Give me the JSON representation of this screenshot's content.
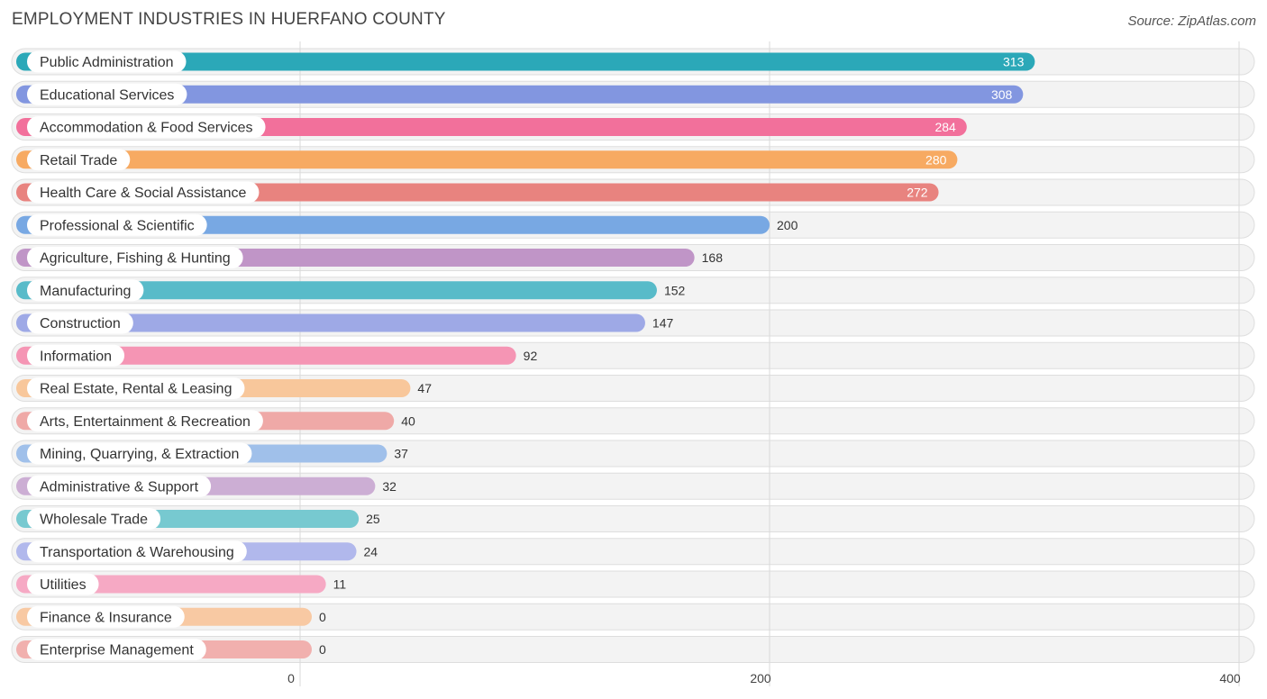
{
  "header": {
    "title": "EMPLOYMENT INDUSTRIES IN HUERFANO COUNTY",
    "source": "Source: ZipAtlas.com"
  },
  "chart_data": {
    "type": "bar",
    "orientation": "horizontal",
    "title": "EMPLOYMENT INDUSTRIES IN HUERFANO COUNTY",
    "xlabel": "",
    "ylabel": "",
    "xlim": [
      0,
      400
    ],
    "ticks": [
      0,
      200,
      400
    ],
    "categories": [
      "Public Administration",
      "Educational Services",
      "Accommodation & Food Services",
      "Retail Trade",
      "Health Care & Social Assistance",
      "Professional & Scientific",
      "Agriculture, Fishing & Hunting",
      "Manufacturing",
      "Construction",
      "Information",
      "Real Estate, Rental & Leasing",
      "Arts, Entertainment & Recreation",
      "Mining, Quarrying, & Extraction",
      "Administrative & Support",
      "Wholesale Trade",
      "Transportation & Warehousing",
      "Utilities",
      "Finance & Insurance",
      "Enterprise Management"
    ],
    "values": [
      313,
      308,
      284,
      280,
      272,
      200,
      168,
      152,
      147,
      92,
      47,
      40,
      37,
      32,
      25,
      24,
      11,
      0,
      0
    ],
    "colors": [
      "#2ba8b8",
      "#8296e0",
      "#f2709b",
      "#f7aa62",
      "#e8837f",
      "#78a8e3",
      "#c095c7",
      "#58bbc9",
      "#9ea9e6",
      "#f595b4",
      "#f8c79b",
      "#efa9a7",
      "#a0c0ea",
      "#ccaed4",
      "#77c9d0",
      "#b1b8ec",
      "#f6a9c4",
      "#f8c9a3",
      "#f1b0ae"
    ],
    "grid": true
  }
}
